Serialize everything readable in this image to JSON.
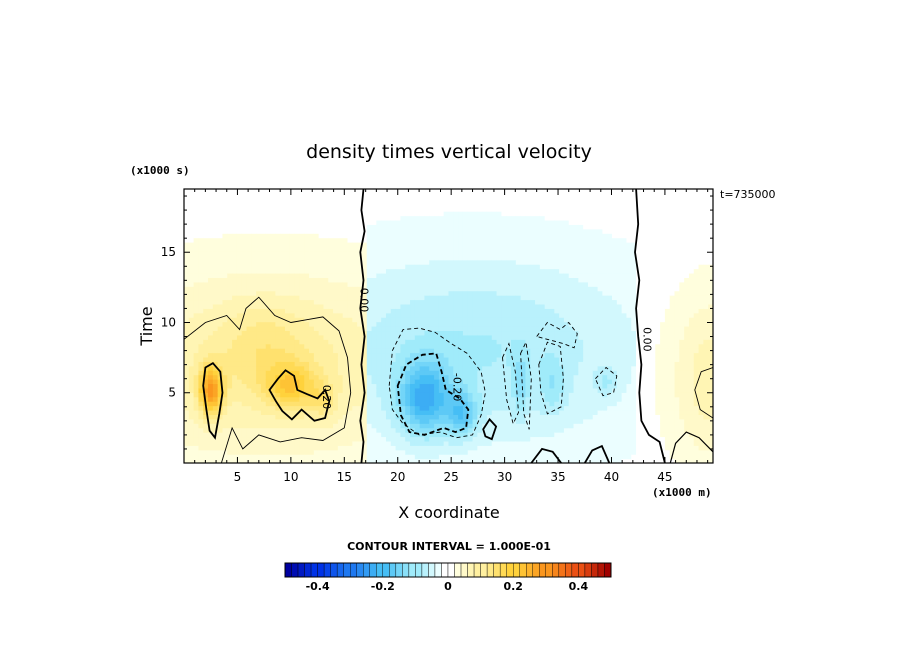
{
  "chart_data": {
    "type": "heatmap",
    "title": "density times vertical velocity",
    "xlabel": "X coordinate",
    "ylabel": "Time",
    "x_unit": "(x1000 m)",
    "y_unit": "(x1000 s)",
    "xlim": [
      0,
      49.5
    ],
    "ylim": [
      0,
      19.5
    ],
    "x_ticks": [
      5,
      10,
      15,
      20,
      25,
      30,
      35,
      40,
      45
    ],
    "y_ticks": [
      5,
      10,
      15
    ],
    "time_label": "t=735000",
    "contour_interval_label": "CONTOUR INTERVAL = 1.000E-01",
    "contour_labels": [
      {
        "text": "0.00",
        "x": 16.5,
        "y": 11.6
      },
      {
        "text": "0.00",
        "x": 43.0,
        "y": 8.8
      },
      {
        "text": "0.20",
        "x": 13.0,
        "y": 4.7
      },
      {
        "text": "-0.20",
        "x": 25.2,
        "y": 5.4
      }
    ],
    "colorbar": {
      "range": [
        -0.5,
        0.5
      ],
      "ticks": [
        -0.4,
        -0.2,
        0,
        0.2,
        0.4
      ],
      "tick_labels": [
        "-0.4",
        "-0.2",
        "0",
        "0.2",
        "0.4"
      ]
    },
    "features": [
      {
        "sign": "positive",
        "x": 2.5,
        "y": 5.2,
        "peak": 0.3
      },
      {
        "sign": "positive",
        "x": 10.0,
        "y": 5.5,
        "peak": 0.22
      },
      {
        "sign": "negative",
        "x": 22.5,
        "y": 4.5,
        "peak": -0.28
      },
      {
        "sign": "negative",
        "x": 26.0,
        "y": 3.5,
        "peak": -0.25
      },
      {
        "sign": "positive",
        "x": 49.0,
        "y": 5.0,
        "peak": 0.08
      }
    ]
  }
}
